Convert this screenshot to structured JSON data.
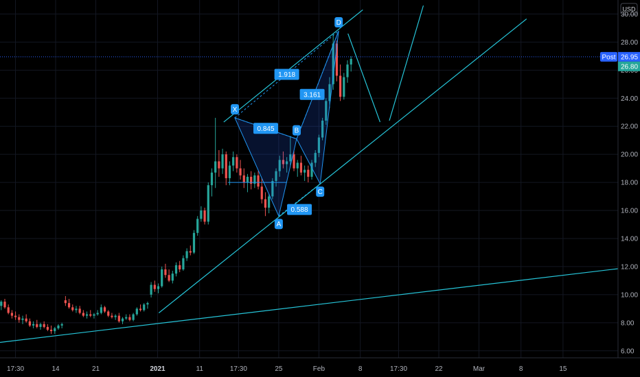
{
  "chart_data": {
    "type": "candlestick",
    "currency": "USD",
    "ylim": [
      5.5,
      30.9
    ],
    "yticks": [
      6,
      8,
      10,
      12,
      14,
      16,
      18,
      20,
      22,
      24,
      26,
      28,
      30
    ],
    "ytick_labels": [
      "6.00",
      "8.00",
      "10.00",
      "12.00",
      "14.00",
      "16.00",
      "18.00",
      "20.00",
      "22.00",
      "24.00",
      "26.00",
      "28.00",
      "30.00"
    ],
    "x_range": [
      0,
      100
    ],
    "xticks": [
      {
        "x": 2.5,
        "label": "17:30",
        "bold": false
      },
      {
        "x": 9.0,
        "label": "14",
        "bold": false
      },
      {
        "x": 15.5,
        "label": "21",
        "bold": false
      },
      {
        "x": 25.5,
        "label": "2021",
        "bold": true
      },
      {
        "x": 32.3,
        "label": "11",
        "bold": false
      },
      {
        "x": 38.6,
        "label": "17:30",
        "bold": false
      },
      {
        "x": 45.1,
        "label": "25",
        "bold": false
      },
      {
        "x": 51.6,
        "label": "Feb",
        "bold": false
      },
      {
        "x": 58.3,
        "label": "8",
        "bold": false
      },
      {
        "x": 64.5,
        "label": "17:30",
        "bold": false
      },
      {
        "x": 71.0,
        "label": "22",
        "bold": false
      },
      {
        "x": 77.5,
        "label": "Mar",
        "bold": false
      },
      {
        "x": 84.3,
        "label": "8",
        "bold": false
      },
      {
        "x": 91.1,
        "label": "15",
        "bold": false
      }
    ],
    "price_labels": [
      {
        "tag": "Post",
        "value": "26.95",
        "color": "#2962ff"
      },
      {
        "value": "26.80",
        "color": "#26a69a"
      }
    ],
    "current_price": 26.95,
    "candles_ohlc": [
      [
        9.2,
        9.6,
        8.9,
        9.5
      ],
      [
        9.5,
        9.7,
        9.0,
        9.1
      ],
      [
        9.1,
        9.3,
        8.6,
        8.7
      ],
      [
        8.7,
        8.9,
        8.3,
        8.5
      ],
      [
        8.5,
        8.8,
        8.2,
        8.4
      ],
      [
        8.4,
        8.6,
        8.0,
        8.2
      ],
      [
        8.2,
        8.5,
        7.9,
        8.3
      ],
      [
        8.3,
        8.6,
        8.0,
        8.1
      ],
      [
        8.1,
        8.3,
        7.7,
        7.8
      ],
      [
        7.8,
        8.1,
        7.6,
        7.9
      ],
      [
        7.9,
        8.2,
        7.6,
        7.7
      ],
      [
        7.7,
        8.0,
        7.5,
        7.9
      ],
      [
        7.9,
        8.1,
        7.6,
        7.7
      ],
      [
        7.7,
        7.9,
        7.4,
        7.5
      ],
      [
        7.5,
        7.8,
        7.2,
        7.4
      ],
      [
        7.4,
        7.7,
        7.2,
        7.6
      ],
      [
        7.6,
        7.9,
        7.5,
        7.8
      ],
      [
        7.8,
        8.0,
        7.6,
        7.9
      ],
      [
        9.6,
        9.9,
        9.2,
        9.4
      ],
      [
        9.4,
        9.7,
        9.0,
        9.1
      ],
      [
        9.1,
        9.3,
        8.8,
        8.9
      ],
      [
        8.9,
        9.2,
        8.7,
        9.0
      ],
      [
        9.0,
        9.2,
        8.6,
        8.7
      ],
      [
        8.7,
        8.9,
        8.4,
        8.5
      ],
      [
        8.5,
        8.8,
        8.3,
        8.6
      ],
      [
        8.6,
        8.9,
        8.4,
        8.5
      ],
      [
        8.5,
        8.7,
        8.3,
        8.6
      ],
      [
        8.6,
        8.9,
        8.5,
        8.7
      ],
      [
        8.7,
        9.3,
        8.6,
        9.1
      ],
      [
        9.1,
        9.2,
        8.7,
        8.8
      ],
      [
        8.8,
        8.9,
        8.4,
        8.5
      ],
      [
        8.5,
        8.7,
        8.3,
        8.4
      ],
      [
        8.4,
        8.6,
        8.2,
        8.5
      ],
      [
        8.5,
        8.7,
        8.0,
        8.1
      ],
      [
        8.1,
        8.4,
        7.9,
        8.3
      ],
      [
        8.3,
        8.6,
        8.2,
        8.4
      ],
      [
        8.4,
        8.6,
        8.1,
        8.2
      ],
      [
        8.2,
        8.7,
        8.1,
        8.6
      ],
      [
        8.6,
        9.1,
        8.5,
        9.0
      ],
      [
        9.0,
        9.3,
        8.8,
        8.9
      ],
      [
        8.9,
        9.4,
        8.8,
        9.3
      ],
      [
        9.3,
        9.5,
        9.0,
        9.4
      ],
      [
        10.0,
        10.9,
        9.8,
        10.7
      ],
      [
        10.7,
        11.0,
        10.2,
        10.4
      ],
      [
        10.4,
        10.8,
        10.1,
        10.6
      ],
      [
        10.6,
        12.0,
        10.5,
        11.8
      ],
      [
        11.8,
        12.2,
        11.2,
        11.4
      ],
      [
        11.4,
        11.8,
        10.9,
        11.0
      ],
      [
        11.0,
        11.7,
        10.8,
        11.5
      ],
      [
        11.5,
        12.3,
        11.3,
        12.1
      ],
      [
        12.1,
        12.4,
        11.6,
        11.8
      ],
      [
        11.8,
        12.8,
        11.7,
        12.6
      ],
      [
        12.6,
        13.3,
        12.4,
        13.1
      ],
      [
        13.1,
        13.5,
        12.8,
        13.0
      ],
      [
        13.0,
        14.6,
        12.9,
        14.4
      ],
      [
        14.4,
        15.6,
        14.2,
        15.4
      ],
      [
        15.4,
        16.3,
        15.2,
        16.0
      ],
      [
        16.0,
        16.2,
        15.0,
        15.2
      ],
      [
        15.2,
        18.0,
        15.0,
        17.8
      ],
      [
        17.8,
        19.0,
        17.0,
        18.7
      ],
      [
        18.7,
        22.6,
        17.6,
        19.5
      ],
      [
        19.5,
        20.3,
        18.4,
        19.0
      ],
      [
        19.0,
        20.4,
        18.6,
        20.0
      ],
      [
        20.0,
        20.2,
        17.8,
        18.3
      ],
      [
        18.3,
        19.5,
        17.8,
        19.2
      ],
      [
        19.2,
        20.2,
        18.8,
        19.8
      ],
      [
        19.8,
        20.0,
        18.7,
        19.0
      ],
      [
        19.0,
        19.6,
        18.2,
        18.5
      ],
      [
        18.5,
        19.0,
        17.6,
        18.0
      ],
      [
        18.0,
        18.6,
        17.3,
        18.4
      ],
      [
        18.4,
        18.8,
        17.5,
        17.9
      ],
      [
        17.9,
        18.7,
        17.6,
        18.5
      ],
      [
        18.5,
        18.8,
        17.5,
        17.7
      ],
      [
        17.7,
        18.3,
        16.5,
        16.8
      ],
      [
        16.8,
        17.3,
        15.6,
        16.2
      ],
      [
        16.2,
        17.2,
        15.8,
        17.0
      ],
      [
        17.0,
        18.3,
        16.8,
        18.1
      ],
      [
        18.1,
        19.0,
        17.7,
        18.8
      ],
      [
        18.8,
        19.9,
        18.4,
        19.6
      ],
      [
        19.6,
        20.2,
        19.0,
        19.3
      ],
      [
        19.3,
        19.8,
        18.7,
        19.5
      ],
      [
        19.5,
        21.3,
        19.2,
        20.0
      ],
      [
        20.0,
        20.3,
        18.8,
        19.0
      ],
      [
        19.0,
        19.6,
        18.4,
        19.4
      ],
      [
        19.4,
        19.9,
        18.5,
        18.7
      ],
      [
        18.7,
        19.2,
        18.1,
        18.9
      ],
      [
        18.9,
        19.2,
        18.0,
        18.4
      ],
      [
        18.4,
        19.6,
        18.2,
        19.4
      ],
      [
        19.4,
        20.3,
        19.1,
        20.1
      ],
      [
        20.1,
        21.4,
        19.8,
        21.2
      ],
      [
        21.2,
        22.6,
        21.0,
        22.4
      ],
      [
        22.4,
        24.0,
        22.1,
        23.8
      ],
      [
        23.8,
        25.5,
        23.3,
        25.0
      ],
      [
        25.0,
        28.6,
        24.6,
        27.9
      ],
      [
        27.9,
        28.1,
        25.2,
        25.6
      ],
      [
        25.6,
        26.4,
        23.8,
        24.1
      ],
      [
        24.1,
        25.8,
        23.9,
        25.5
      ],
      [
        25.5,
        26.7,
        25.1,
        26.4
      ],
      [
        26.4,
        27.0,
        25.9,
        26.8
      ]
    ],
    "pattern_points": [
      {
        "label": "X",
        "x": 38.0,
        "y": 22.6
      },
      {
        "label": "A",
        "x": 45.1,
        "y": 15.6
      },
      {
        "label": "B",
        "x": 48.0,
        "y": 21.1
      },
      {
        "label": "C",
        "x": 51.8,
        "y": 17.9
      },
      {
        "label": "D",
        "x": 54.8,
        "y": 28.8
      }
    ],
    "ratio_labels": [
      "1.918",
      "0.845",
      "3.161",
      "0.588"
    ]
  }
}
